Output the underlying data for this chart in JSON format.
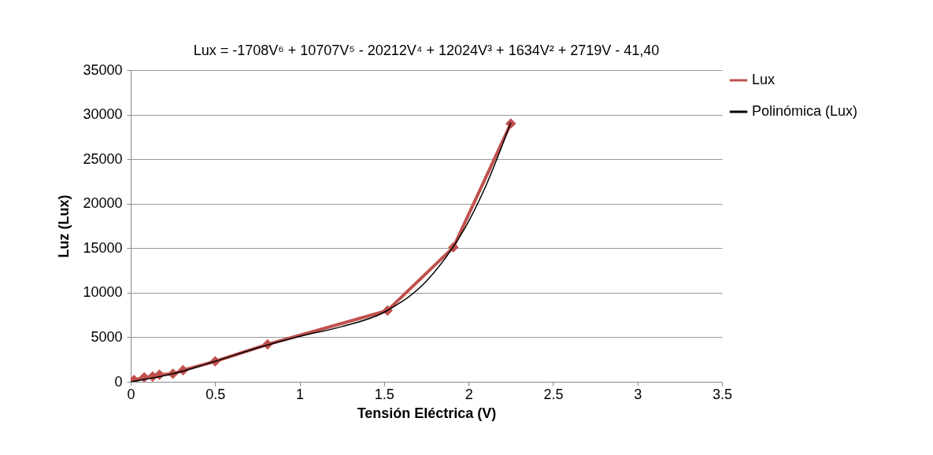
{
  "chart_data": {
    "type": "line",
    "title": "Lux = -1708V⁶ + 10707V⁵ - 20212V⁴ + 12024V³ + 1634V² + 2719V - 41,40",
    "xlabel": "Tensión Eléctrica (V)",
    "ylabel": "Luz (Lux)",
    "series": [
      {
        "name": "Lux",
        "color": "#c0504d",
        "marker": "diamond",
        "x": [
          0,
          0.02,
          0.08,
          0.13,
          0.17,
          0.25,
          0.31,
          0.5,
          0.81,
          1.52,
          1.91,
          2.25
        ],
        "values": [
          0,
          200,
          500,
          600,
          800,
          900,
          1300,
          2300,
          4200,
          8000,
          15100,
          29000
        ]
      },
      {
        "name": "Polinómica (Lux)",
        "color": "#000000",
        "marker": "none",
        "x": [
          0,
          0.25,
          0.5,
          0.75,
          1,
          1.25,
          1.5,
          1.75,
          1.9,
          2,
          2.1,
          2.25
        ],
        "values": [
          0,
          900,
          2300,
          3800,
          5100,
          6200,
          7800,
          11300,
          14900,
          18000,
          21900,
          29100
        ]
      }
    ],
    "xlim": [
      0,
      3.5
    ],
    "xticks": [
      0,
      0.5,
      1,
      1.5,
      2,
      2.5,
      3,
      3.5
    ],
    "ylim": [
      0,
      35000
    ],
    "yticks": [
      0,
      5000,
      10000,
      15000,
      20000,
      25000,
      30000,
      35000
    ],
    "grid": "y",
    "legend": "right"
  }
}
